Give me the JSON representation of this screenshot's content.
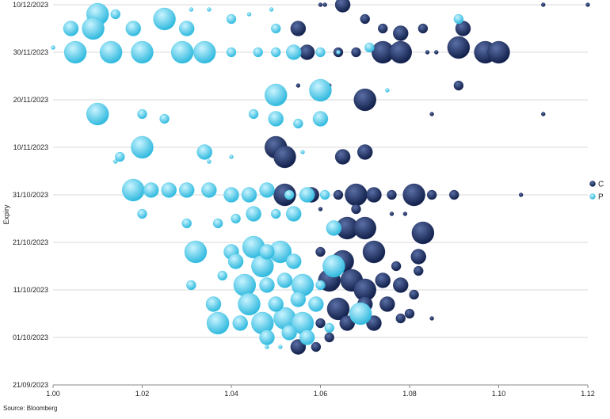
{
  "chart_data": {
    "type": "scatter",
    "subtype": "bubble",
    "title": "",
    "xlabel": "",
    "ylabel": "Expiry",
    "xlim": [
      1.0,
      1.12
    ],
    "ylim": [
      "21/09/2023",
      "10/12/2023"
    ],
    "x_ticks": [
      "1.00",
      "1.02",
      "1.04",
      "1.06",
      "1.08",
      "1.10",
      "1.12"
    ],
    "y_ticks": [
      "21/09/2023",
      "01/10/2023",
      "11/10/2023",
      "21/10/2023",
      "31/10/2023",
      "10/11/2023",
      "20/11/2023",
      "30/11/2023",
      "10/12/2023"
    ],
    "grid": "horizontal",
    "legend_position": "right",
    "source": "Source: Bloomberg",
    "series": [
      {
        "name": "C",
        "color": "#1b2b5e",
        "points": [
          {
            "x": 1.065,
            "y": "10/12/2023",
            "size": 3
          },
          {
            "x": 1.06,
            "y": "10/12/2023",
            "size": 1
          },
          {
            "x": 1.061,
            "y": "10/12/2023",
            "size": 1
          },
          {
            "x": 1.11,
            "y": "10/12/2023",
            "size": 1
          },
          {
            "x": 1.12,
            "y": "10/12/2023",
            "size": 1
          },
          {
            "x": 1.055,
            "y": "05/12/2023",
            "size": 3
          },
          {
            "x": 1.07,
            "y": "07/12/2023",
            "size": 2
          },
          {
            "x": 1.074,
            "y": "05/12/2023",
            "size": 2
          },
          {
            "x": 1.078,
            "y": "04/12/2023",
            "size": 3
          },
          {
            "x": 1.083,
            "y": "05/12/2023",
            "size": 2
          },
          {
            "x": 1.092,
            "y": "05/12/2023",
            "size": 3
          },
          {
            "x": 1.057,
            "y": "30/11/2023",
            "size": 3
          },
          {
            "x": 1.064,
            "y": "30/11/2023",
            "size": 2
          },
          {
            "x": 1.068,
            "y": "30/11/2023",
            "size": 2
          },
          {
            "x": 1.074,
            "y": "30/11/2023",
            "size": 4
          },
          {
            "x": 1.078,
            "y": "30/11/2023",
            "size": 4
          },
          {
            "x": 1.084,
            "y": "30/11/2023",
            "size": 1
          },
          {
            "x": 1.086,
            "y": "30/11/2023",
            "size": 1
          },
          {
            "x": 1.091,
            "y": "01/12/2023",
            "size": 4
          },
          {
            "x": 1.097,
            "y": "30/11/2023",
            "size": 4
          },
          {
            "x": 1.1,
            "y": "30/11/2023",
            "size": 4
          },
          {
            "x": 1.055,
            "y": "23/11/2023",
            "size": 1
          },
          {
            "x": 1.062,
            "y": "23/11/2023",
            "size": 1
          },
          {
            "x": 1.07,
            "y": "20/11/2023",
            "size": 4
          },
          {
            "x": 1.091,
            "y": "23/11/2023",
            "size": 2
          },
          {
            "x": 1.085,
            "y": "17/11/2023",
            "size": 1
          },
          {
            "x": 1.11,
            "y": "17/11/2023",
            "size": 1
          },
          {
            "x": 1.05,
            "y": "10/11/2023",
            "size": 4
          },
          {
            "x": 1.052,
            "y": "08/11/2023",
            "size": 4
          },
          {
            "x": 1.065,
            "y": "08/11/2023",
            "size": 3
          },
          {
            "x": 1.07,
            "y": "09/11/2023",
            "size": 3
          },
          {
            "x": 1.052,
            "y": "31/10/2023",
            "size": 4
          },
          {
            "x": 1.058,
            "y": "31/10/2023",
            "size": 3
          },
          {
            "x": 1.064,
            "y": "31/10/2023",
            "size": 2
          },
          {
            "x": 1.068,
            "y": "31/10/2023",
            "size": 4
          },
          {
            "x": 1.072,
            "y": "31/10/2023",
            "size": 3
          },
          {
            "x": 1.076,
            "y": "31/10/2023",
            "size": 2
          },
          {
            "x": 1.081,
            "y": "31/10/2023",
            "size": 4
          },
          {
            "x": 1.085,
            "y": "31/10/2023",
            "size": 2
          },
          {
            "x": 1.09,
            "y": "31/10/2023",
            "size": 2
          },
          {
            "x": 1.105,
            "y": "31/10/2023",
            "size": 1
          },
          {
            "x": 1.06,
            "y": "28/10/2023",
            "size": 1
          },
          {
            "x": 1.068,
            "y": "28/10/2023",
            "size": 2
          },
          {
            "x": 1.076,
            "y": "27/10/2023",
            "size": 1
          },
          {
            "x": 1.079,
            "y": "27/10/2023",
            "size": 1
          },
          {
            "x": 1.066,
            "y": "24/10/2023",
            "size": 4
          },
          {
            "x": 1.07,
            "y": "24/10/2023",
            "size": 4
          },
          {
            "x": 1.083,
            "y": "23/10/2023",
            "size": 4
          },
          {
            "x": 1.06,
            "y": "19/10/2023",
            "size": 2
          },
          {
            "x": 1.065,
            "y": "17/10/2023",
            "size": 4
          },
          {
            "x": 1.072,
            "y": "19/10/2023",
            "size": 4
          },
          {
            "x": 1.077,
            "y": "16/10/2023",
            "size": 2
          },
          {
            "x": 1.082,
            "y": "18/10/2023",
            "size": 3
          },
          {
            "x": 1.082,
            "y": "15/10/2023",
            "size": 2
          },
          {
            "x": 1.062,
            "y": "13/10/2023",
            "size": 4
          },
          {
            "x": 1.067,
            "y": "13/10/2023",
            "size": 4
          },
          {
            "x": 1.07,
            "y": "11/10/2023",
            "size": 4
          },
          {
            "x": 1.074,
            "y": "13/10/2023",
            "size": 3
          },
          {
            "x": 1.078,
            "y": "12/10/2023",
            "size": 3
          },
          {
            "x": 1.081,
            "y": "10/10/2023",
            "size": 2
          },
          {
            "x": 1.064,
            "y": "07/10/2023",
            "size": 4
          },
          {
            "x": 1.07,
            "y": "08/10/2023",
            "size": 3
          },
          {
            "x": 1.075,
            "y": "08/10/2023",
            "size": 3
          },
          {
            "x": 1.08,
            "y": "06/10/2023",
            "size": 2
          },
          {
            "x": 1.085,
            "y": "05/10/2023",
            "size": 1
          },
          {
            "x": 1.06,
            "y": "04/10/2023",
            "size": 2
          },
          {
            "x": 1.066,
            "y": "04/10/2023",
            "size": 3
          },
          {
            "x": 1.072,
            "y": "04/10/2023",
            "size": 3
          },
          {
            "x": 1.078,
            "y": "05/10/2023",
            "size": 2
          },
          {
            "x": 1.055,
            "y": "29/09/2023",
            "size": 3
          },
          {
            "x": 1.059,
            "y": "29/09/2023",
            "size": 2
          },
          {
            "x": 1.062,
            "y": "01/10/2023",
            "size": 2
          }
        ]
      },
      {
        "name": "P",
        "color": "#3ec7e8",
        "points": [
          {
            "x": 1.01,
            "y": "08/12/2023",
            "size": 4
          },
          {
            "x": 1.014,
            "y": "08/12/2023",
            "size": 2
          },
          {
            "x": 1.025,
            "y": "07/12/2023",
            "size": 4
          },
          {
            "x": 1.031,
            "y": "09/12/2023",
            "size": 1
          },
          {
            "x": 1.035,
            "y": "09/12/2023",
            "size": 1
          },
          {
            "x": 1.04,
            "y": "07/12/2023",
            "size": 2
          },
          {
            "x": 1.044,
            "y": "08/12/2023",
            "size": 1
          },
          {
            "x": 1.049,
            "y": "09/12/2023",
            "size": 1
          },
          {
            "x": 1.004,
            "y": "05/12/2023",
            "size": 3
          },
          {
            "x": 1.009,
            "y": "05/12/2023",
            "size": 4
          },
          {
            "x": 1.018,
            "y": "05/12/2023",
            "size": 3
          },
          {
            "x": 1.03,
            "y": "05/12/2023",
            "size": 3
          },
          {
            "x": 1.05,
            "y": "05/12/2023",
            "size": 2
          },
          {
            "x": 1.091,
            "y": "07/12/2023",
            "size": 2
          },
          {
            "x": 1.0,
            "y": "01/12/2023",
            "size": 1
          },
          {
            "x": 1.005,
            "y": "30/11/2023",
            "size": 4
          },
          {
            "x": 1.013,
            "y": "30/11/2023",
            "size": 4
          },
          {
            "x": 1.02,
            "y": "30/11/2023",
            "size": 4
          },
          {
            "x": 1.029,
            "y": "30/11/2023",
            "size": 4
          },
          {
            "x": 1.034,
            "y": "30/11/2023",
            "size": 4
          },
          {
            "x": 1.04,
            "y": "30/11/2023",
            "size": 2
          },
          {
            "x": 1.046,
            "y": "30/11/2023",
            "size": 2
          },
          {
            "x": 1.05,
            "y": "30/11/2023",
            "size": 2
          },
          {
            "x": 1.054,
            "y": "30/11/2023",
            "size": 3
          },
          {
            "x": 1.06,
            "y": "30/11/2023",
            "size": 2
          },
          {
            "x": 1.064,
            "y": "30/11/2023",
            "size": 1
          },
          {
            "x": 1.071,
            "y": "01/12/2023",
            "size": 2
          },
          {
            "x": 1.05,
            "y": "21/11/2023",
            "size": 4
          },
          {
            "x": 1.06,
            "y": "22/11/2023",
            "size": 4
          },
          {
            "x": 1.075,
            "y": "22/11/2023",
            "size": 1
          },
          {
            "x": 1.01,
            "y": "17/11/2023",
            "size": 4
          },
          {
            "x": 1.02,
            "y": "17/11/2023",
            "size": 2
          },
          {
            "x": 1.025,
            "y": "16/11/2023",
            "size": 2
          },
          {
            "x": 1.045,
            "y": "17/11/2023",
            "size": 2
          },
          {
            "x": 1.05,
            "y": "16/11/2023",
            "size": 3
          },
          {
            "x": 1.055,
            "y": "15/11/2023",
            "size": 2
          },
          {
            "x": 1.06,
            "y": "16/11/2023",
            "size": 3
          },
          {
            "x": 1.02,
            "y": "10/11/2023",
            "size": 4
          },
          {
            "x": 1.015,
            "y": "08/11/2023",
            "size": 2
          },
          {
            "x": 1.014,
            "y": "07/11/2023",
            "size": 1
          },
          {
            "x": 1.034,
            "y": "09/11/2023",
            "size": 3
          },
          {
            "x": 1.035,
            "y": "07/11/2023",
            "size": 1
          },
          {
            "x": 1.04,
            "y": "08/11/2023",
            "size": 1
          },
          {
            "x": 1.056,
            "y": "09/11/2023",
            "size": 1
          },
          {
            "x": 1.018,
            "y": "01/11/2023",
            "size": 4
          },
          {
            "x": 1.022,
            "y": "01/11/2023",
            "size": 3
          },
          {
            "x": 1.026,
            "y": "01/11/2023",
            "size": 3
          },
          {
            "x": 1.03,
            "y": "01/11/2023",
            "size": 3
          },
          {
            "x": 1.035,
            "y": "01/11/2023",
            "size": 3
          },
          {
            "x": 1.04,
            "y": "31/10/2023",
            "size": 3
          },
          {
            "x": 1.044,
            "y": "31/10/2023",
            "size": 3
          },
          {
            "x": 1.048,
            "y": "01/11/2023",
            "size": 3
          },
          {
            "x": 1.053,
            "y": "31/10/2023",
            "size": 2
          },
          {
            "x": 1.057,
            "y": "31/10/2023",
            "size": 3
          },
          {
            "x": 1.061,
            "y": "31/10/2023",
            "size": 2
          },
          {
            "x": 1.02,
            "y": "27/10/2023",
            "size": 2
          },
          {
            "x": 1.03,
            "y": "25/10/2023",
            "size": 2
          },
          {
            "x": 1.037,
            "y": "25/10/2023",
            "size": 2
          },
          {
            "x": 1.041,
            "y": "26/10/2023",
            "size": 2
          },
          {
            "x": 1.045,
            "y": "27/10/2023",
            "size": 3
          },
          {
            "x": 1.05,
            "y": "27/10/2023",
            "size": 2
          },
          {
            "x": 1.054,
            "y": "27/10/2023",
            "size": 3
          },
          {
            "x": 1.063,
            "y": "24/10/2023",
            "size": 3
          },
          {
            "x": 1.032,
            "y": "19/10/2023",
            "size": 4
          },
          {
            "x": 1.04,
            "y": "19/10/2023",
            "size": 3
          },
          {
            "x": 1.045,
            "y": "20/10/2023",
            "size": 4
          },
          {
            "x": 1.048,
            "y": "19/10/2023",
            "size": 3
          },
          {
            "x": 1.051,
            "y": "19/10/2023",
            "size": 4
          },
          {
            "x": 1.041,
            "y": "17/10/2023",
            "size": 3
          },
          {
            "x": 1.047,
            "y": "16/10/2023",
            "size": 4
          },
          {
            "x": 1.054,
            "y": "17/10/2023",
            "size": 3
          },
          {
            "x": 1.063,
            "y": "16/10/2023",
            "size": 4
          },
          {
            "x": 1.031,
            "y": "12/10/2023",
            "size": 2
          },
          {
            "x": 1.038,
            "y": "14/10/2023",
            "size": 2
          },
          {
            "x": 1.043,
            "y": "12/10/2023",
            "size": 4
          },
          {
            "x": 1.048,
            "y": "12/10/2023",
            "size": 3
          },
          {
            "x": 1.052,
            "y": "13/10/2023",
            "size": 3
          },
          {
            "x": 1.056,
            "y": "12/10/2023",
            "size": 4
          },
          {
            "x": 1.06,
            "y": "12/10/2023",
            "size": 2
          },
          {
            "x": 1.036,
            "y": "08/10/2023",
            "size": 3
          },
          {
            "x": 1.044,
            "y": "08/10/2023",
            "size": 4
          },
          {
            "x": 1.05,
            "y": "08/10/2023",
            "size": 3
          },
          {
            "x": 1.055,
            "y": "09/10/2023",
            "size": 3
          },
          {
            "x": 1.059,
            "y": "08/10/2023",
            "size": 3
          },
          {
            "x": 1.037,
            "y": "04/10/2023",
            "size": 4
          },
          {
            "x": 1.042,
            "y": "04/10/2023",
            "size": 3
          },
          {
            "x": 1.047,
            "y": "04/10/2023",
            "size": 4
          },
          {
            "x": 1.052,
            "y": "05/10/2023",
            "size": 4
          },
          {
            "x": 1.056,
            "y": "04/10/2023",
            "size": 4
          },
          {
            "x": 1.062,
            "y": "03/10/2023",
            "size": 2
          },
          {
            "x": 1.069,
            "y": "06/10/2023",
            "size": 4
          },
          {
            "x": 1.048,
            "y": "01/10/2023",
            "size": 3
          },
          {
            "x": 1.053,
            "y": "02/10/2023",
            "size": 3
          },
          {
            "x": 1.057,
            "y": "01/10/2023",
            "size": 3
          },
          {
            "x": 1.048,
            "y": "29/09/2023",
            "size": 1
          },
          {
            "x": 1.051,
            "y": "29/09/2023",
            "size": 1
          }
        ]
      }
    ]
  }
}
